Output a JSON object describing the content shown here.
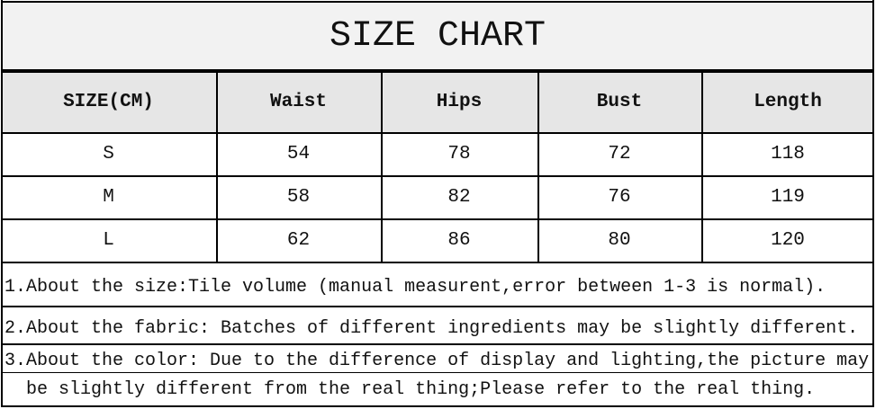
{
  "title": "SIZE CHART",
  "table": {
    "headers": [
      "SIZE(CM)",
      "Waist",
      "Hips",
      "Bust",
      "Length"
    ],
    "rows": [
      [
        "S",
        "54",
        "78",
        "72",
        "118"
      ],
      [
        "M",
        "58",
        "82",
        "76",
        "119"
      ],
      [
        "L",
        "62",
        "86",
        "80",
        "120"
      ]
    ]
  },
  "notes": [
    "1.About the size:Tile volume (manual measurent,error between 1-3 is normal).",
    "2.About the fabric: Batches of different ingredients may be slightly different.",
    "3.About the color: Due to the difference of display and lighting,the picture may",
    "be slightly different from the real thing;Please refer to the real thing."
  ]
}
